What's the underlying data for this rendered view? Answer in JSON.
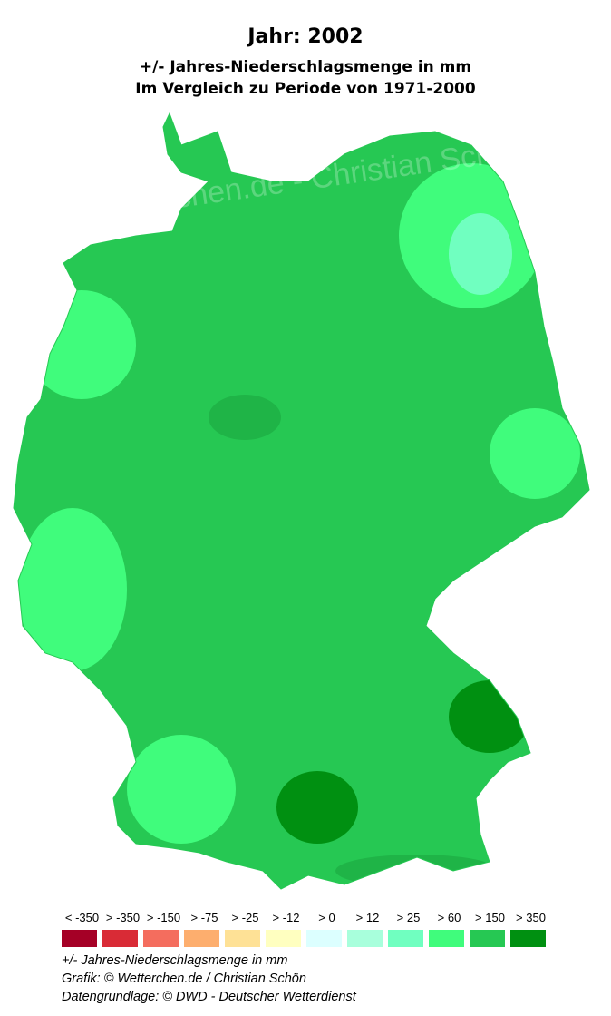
{
  "header": {
    "title": "Jahr: 2002",
    "subtitle1": "+/- Jahres-Niederschlagsmenge in mm",
    "subtitle2": "Im Vergleich zu Periode von 1971-2000"
  },
  "map": {
    "region": "Deutschland",
    "dominant_color": "#26c853",
    "watermark": "Wetterchen.de - Christian Schön"
  },
  "legend": {
    "items": [
      {
        "label": "< -350",
        "color": "#a50026"
      },
      {
        "label": "> -350",
        "color": "#d92b36"
      },
      {
        "label": "> -150",
        "color": "#f46d5e"
      },
      {
        "label": "> -75",
        "color": "#fdae6e"
      },
      {
        "label": "> -25",
        "color": "#fee196"
      },
      {
        "label": "> -12",
        "color": "#ffffc0"
      },
      {
        "label": "> 0",
        "color": "#dcffff"
      },
      {
        "label": "> 12",
        "color": "#a8ffdc"
      },
      {
        "label": "> 25",
        "color": "#70ffc0"
      },
      {
        "label": "> 60",
        "color": "#40fc7c"
      },
      {
        "label": "> 150",
        "color": "#26c853"
      },
      {
        "label": "> 350",
        "color": "#009011"
      }
    ]
  },
  "footer": {
    "unit": "+/- Jahres-Niederschlagsmenge in mm",
    "credit": "Grafik: © Wetterchen.de / Christian Schön",
    "source": "Datengrundlage: © DWD - Deutscher Wetterdienst"
  }
}
